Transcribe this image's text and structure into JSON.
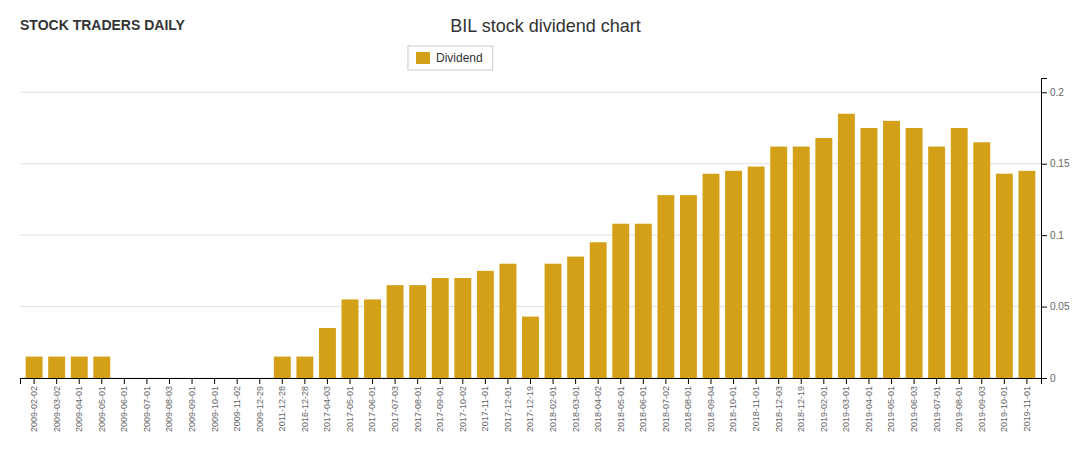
{
  "chart_data": {
    "type": "bar",
    "title": "BIL stock dividend chart",
    "annotations": [
      "STOCK TRADERS DAILY"
    ],
    "categories": [
      "2009-02-02",
      "2009-03-02",
      "2009-04-01",
      "2009-05-01",
      "2009-06-01",
      "2009-07-01",
      "2009-08-03",
      "2009-09-01",
      "2009-10-01",
      "2009-11-02",
      "2009-12-29",
      "2011-12-28",
      "2016-12-28",
      "2017-04-03",
      "2017-05-01",
      "2017-06-01",
      "2017-07-03",
      "2017-08-01",
      "2017-09-01",
      "2017-10-02",
      "2017-11-01",
      "2017-12-01",
      "2017-12-19",
      "2018-02-01",
      "2018-03-01",
      "2018-04-02",
      "2018-05-01",
      "2018-06-01",
      "2018-07-02",
      "2018-08-01",
      "2018-09-04",
      "2018-10-01",
      "2018-11-01",
      "2018-12-03",
      "2018-12-19",
      "2019-02-01",
      "2019-03-01",
      "2019-04-01",
      "2019-05-01",
      "2019-06-03",
      "2019-07-01",
      "2019-08-01",
      "2019-09-03",
      "2019-10-01",
      "2019-11-01"
    ],
    "series": [
      {
        "name": "Dividend",
        "color": "#D4A017",
        "values": [
          0.015,
          0.015,
          0.015,
          0.015,
          0.0,
          0.0,
          0.0,
          0.0,
          0.0,
          0.0,
          0.0,
          0.015,
          0.015,
          0.035,
          0.055,
          0.055,
          0.065,
          0.065,
          0.07,
          0.07,
          0.075,
          0.08,
          0.043,
          0.08,
          0.085,
          0.095,
          0.108,
          0.108,
          0.128,
          0.128,
          0.143,
          0.145,
          0.148,
          0.162,
          0.162,
          0.168,
          0.185,
          0.175,
          0.18,
          0.175,
          0.162,
          0.175,
          0.165,
          0.143,
          0.145
        ]
      }
    ],
    "ylim": [
      0,
      0.21
    ],
    "yticks": [
      0,
      0.05,
      0.1,
      0.15,
      0.2
    ],
    "grid": true,
    "legend": "top"
  }
}
